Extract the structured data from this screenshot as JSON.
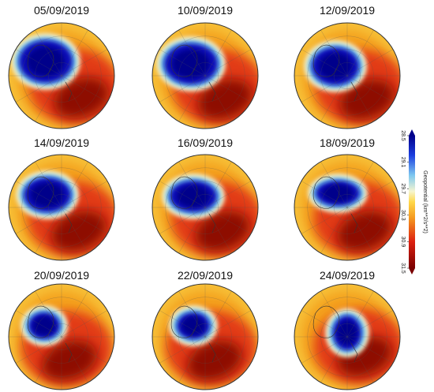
{
  "panels": [
    {
      "title": "05/09/2019"
    },
    {
      "title": "10/09/2019"
    },
    {
      "title": "12/09/2019"
    },
    {
      "title": "14/09/2019"
    },
    {
      "title": "16/09/2019"
    },
    {
      "title": "18/09/2019"
    },
    {
      "title": "20/09/2019"
    },
    {
      "title": "22/09/2019"
    },
    {
      "title": "24/09/2019"
    }
  ],
  "colorbar": {
    "label": "Geopotential (km**2/s**2)",
    "lim": [
      28.5,
      31.5
    ],
    "ticks": [
      28.5,
      29.1,
      29.7,
      30.3,
      30.9,
      31.5
    ]
  }
}
